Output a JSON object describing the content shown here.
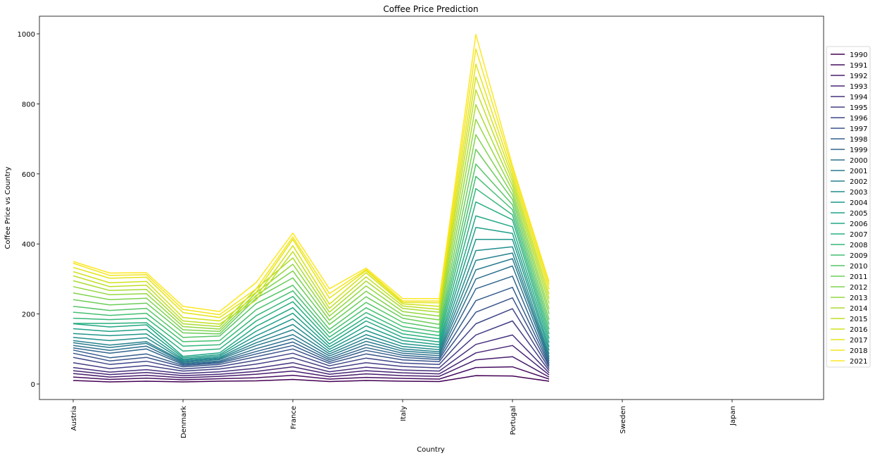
{
  "chart_data": {
    "type": "line",
    "title": "Coffee Price Prediction",
    "xlabel": "Country",
    "ylabel": "Coffee Price vs Country",
    "ylim": [
      -45,
      1045
    ],
    "yticks": [
      0,
      200,
      400,
      600,
      800,
      1000
    ],
    "x_ticklabels": [
      "Austria",
      "Denmark",
      "France",
      "Italy",
      "Portugal",
      "Sweden",
      "Japan"
    ],
    "legend_position": "right",
    "colormap": "viridis",
    "grid": false,
    "series": [
      {
        "name": "1990",
        "color": "#440154",
        "values": [
          10,
          6,
          8,
          6,
          8,
          9,
          13,
          7,
          10,
          8,
          7,
          24,
          23,
          8
        ]
      },
      {
        "name": "1991",
        "color": "#470e61",
        "values": [
          20,
          13,
          17,
          12,
          15,
          18,
          25,
          14,
          19,
          16,
          14,
          47,
          49,
          14
        ]
      },
      {
        "name": "1992",
        "color": "#481b6d",
        "values": [
          30,
          20,
          25,
          18,
          22,
          28,
          37,
          21,
          29,
          24,
          22,
          69,
          78,
          20
        ]
      },
      {
        "name": "1993",
        "color": "#482576",
        "values": [
          38,
          27,
          33,
          24,
          28,
          36,
          49,
          28,
          38,
          32,
          29,
          89,
          110,
          26
        ]
      },
      {
        "name": "1994",
        "color": "#46307e",
        "values": [
          47,
          34,
          41,
          30,
          35,
          45,
          61,
          35,
          48,
          40,
          37,
          113,
          140,
          32
        ]
      },
      {
        "name": "1995",
        "color": "#433e85",
        "values": [
          61,
          44,
          53,
          37,
          43,
          57,
          75,
          44,
          61,
          50,
          46,
          140,
          180,
          38
        ]
      },
      {
        "name": "1996",
        "color": "#3f4788",
        "values": [
          76,
          56,
          65,
          43,
          50,
          68,
          88,
          52,
          74,
          60,
          56,
          172,
          215,
          44
        ]
      },
      {
        "name": "1997",
        "color": "#3a538b",
        "values": [
          88,
          66,
          76,
          49,
          56,
          78,
          100,
          59,
          86,
          69,
          64,
          205,
          246,
          50
        ]
      },
      {
        "name": "1998",
        "color": "#355e8d",
        "values": [
          97,
          75,
          86,
          53,
          60,
          86,
          110,
          64,
          96,
          76,
          70,
          238,
          276,
          55
        ]
      },
      {
        "name": "1999",
        "color": "#31668e",
        "values": [
          103,
          88,
          100,
          56,
          63,
          93,
          120,
          69,
          104,
          82,
          75,
          272,
          308,
          60
        ]
      },
      {
        "name": "2000",
        "color": "#2d718e",
        "values": [
          110,
          96,
          108,
          59,
          66,
          101,
          130,
          74,
          113,
          88,
          81,
          300,
          337,
          66
        ]
      },
      {
        "name": "2001",
        "color": "#297a8e",
        "values": [
          118,
          104,
          116,
          62,
          70,
          110,
          141,
          80,
          122,
          94,
          87,
          326,
          358,
          72
        ]
      },
      {
        "name": "2002",
        "color": "#26828e",
        "values": [
          124,
          111,
          121,
          65,
          73,
          118,
          155,
          86,
          131,
          100,
          92,
          353,
          374,
          78
        ]
      },
      {
        "name": "2003",
        "color": "#228d8d",
        "values": [
          133,
          124,
          132,
          68,
          76,
          127,
          170,
          92,
          141,
          107,
          98,
          381,
          392,
          86
        ]
      },
      {
        "name": "2004",
        "color": "#1f968b",
        "values": [
          144,
          138,
          143,
          71,
          80,
          138,
          186,
          99,
          153,
          115,
          105,
          413,
          413,
          96
        ]
      },
      {
        "name": "2005",
        "color": "#1fa088",
        "values": [
          158,
          150,
          156,
          75,
          84,
          151,
          202,
          106,
          166,
          124,
          112,
          447,
          430,
          106
        ]
      },
      {
        "name": "2006",
        "color": "#22a785",
        "values": [
          172,
          163,
          169,
          79,
          89,
          165,
          218,
          114,
          180,
          133,
          120,
          480,
          449,
          118
        ]
      },
      {
        "name": "2007",
        "color": "#29af7f",
        "values": [
          173,
          173,
          175,
          94,
          100,
          180,
          235,
          124,
          191,
          143,
          129,
          520,
          469,
          130
        ]
      },
      {
        "name": "2008",
        "color": "#35b779",
        "values": [
          188,
          184,
          188,
          108,
          112,
          195,
          250,
          134,
          204,
          153,
          138,
          558,
          483,
          143
        ]
      },
      {
        "name": "2009",
        "color": "#44bf70",
        "values": [
          205,
          196,
          202,
          121,
          124,
          212,
          266,
          145,
          218,
          164,
          148,
          593,
          498,
          156
        ]
      },
      {
        "name": "2010",
        "color": "#56c667",
        "values": [
          222,
          210,
          216,
          133,
          137,
          230,
          282,
          156,
          233,
          176,
          159,
          628,
          512,
          170
        ]
      },
      {
        "name": "2011",
        "color": "#6ccd5a",
        "values": [
          241,
          226,
          231,
          146,
          143,
          245,
          303,
          170,
          249,
          188,
          170,
          670,
          527,
          184
        ]
      },
      {
        "name": "2012",
        "color": "#7fd34e",
        "values": [
          260,
          241,
          245,
          155,
          150,
          253,
          323,
          182,
          265,
          197,
          183,
          712,
          540,
          200
        ]
      },
      {
        "name": "2013",
        "color": "#94d840",
        "values": [
          278,
          255,
          258,
          164,
          157,
          261,
          342,
          194,
          280,
          207,
          194,
          756,
          553,
          214
        ]
      },
      {
        "name": "2014",
        "color": "#abdc32",
        "values": [
          295,
          267,
          270,
          172,
          164,
          272,
          360,
          205,
          294,
          216,
          205,
          798,
          566,
          230
        ]
      },
      {
        "name": "2015",
        "color": "#c0df25",
        "values": [
          309,
          278,
          282,
          180,
          171,
          240,
          378,
          216,
          306,
          223,
          213,
          840,
          578,
          244
        ]
      },
      {
        "name": "2016",
        "color": "#d2e21b",
        "values": [
          321,
          289,
          293,
          190,
          180,
          250,
          395,
          228,
          318,
          229,
          222,
          877,
          590,
          257
        ]
      },
      {
        "name": "2017",
        "color": "#e5e419",
        "values": [
          333,
          302,
          305,
          204,
          190,
          262,
          413,
          245,
          324,
          233,
          232,
          914,
          602,
          271
        ]
      },
      {
        "name": "2018",
        "color": "#f3e61e",
        "values": [
          345,
          310,
          312,
          213,
          198,
          272,
          420,
          258,
          327,
          237,
          237,
          957,
          614,
          283
        ]
      },
      {
        "name": "2021",
        "color": "#fde725",
        "values": [
          350,
          317,
          318,
          222,
          207,
          290,
          431,
          272,
          331,
          244,
          244,
          998,
          624,
          292
        ]
      }
    ]
  }
}
